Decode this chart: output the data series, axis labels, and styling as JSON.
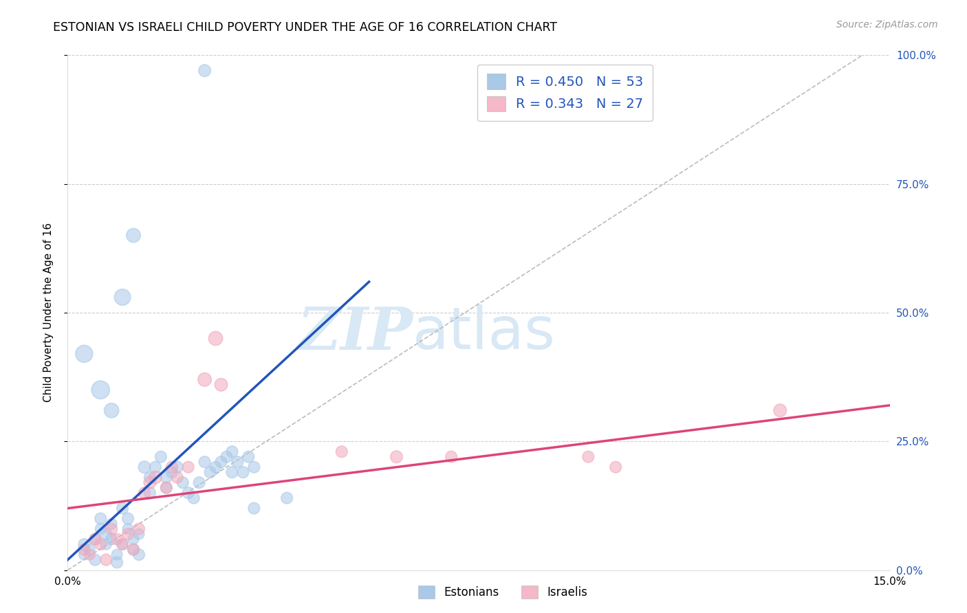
{
  "title": "ESTONIAN VS ISRAELI CHILD POVERTY UNDER THE AGE OF 16 CORRELATION CHART",
  "source": "Source: ZipAtlas.com",
  "ylabel": "Child Poverty Under the Age of 16",
  "xlim": [
    0,
    0.15
  ],
  "ylim": [
    0,
    1.0
  ],
  "xtick_positions": [
    0.0,
    0.05,
    0.1,
    0.15
  ],
  "xtick_labels": [
    "0.0%",
    "",
    "",
    "15.0%"
  ],
  "ytick_positions": [
    0.0,
    0.25,
    0.5,
    0.75,
    1.0
  ],
  "ytick_labels_right": [
    "0.0%",
    "25.0%",
    "50.0%",
    "75.0%",
    "100.0%"
  ],
  "background": "#ffffff",
  "grid_color": "#cccccc",
  "watermark_zip": "ZIP",
  "watermark_atlas": "atlas",
  "watermark_color": "#d8e8f5",
  "blue_scatter_color": "#a8c8e8",
  "pink_scatter_color": "#f0a8bc",
  "blue_line_color": "#2255bb",
  "pink_line_color": "#dd4477",
  "dashed_line_color": "#bbbbbb",
  "legend_label1": "R = 0.450   N = 53",
  "legend_label2": "R = 0.343   N = 27",
  "legend_text_color": "#2255bb",
  "blue_line_x": [
    0.0,
    0.055
  ],
  "blue_line_y": [
    0.02,
    0.56
  ],
  "pink_line_x": [
    0.0,
    0.15
  ],
  "pink_line_y": [
    0.12,
    0.32
  ],
  "dash_line_x": [
    0.0,
    0.145
  ],
  "dash_line_y": [
    0.0,
    1.0
  ],
  "estonians_x": [
    0.003,
    0.003,
    0.004,
    0.005,
    0.005,
    0.006,
    0.006,
    0.007,
    0.007,
    0.008,
    0.008,
    0.009,
    0.009,
    0.01,
    0.01,
    0.011,
    0.011,
    0.012,
    0.012,
    0.013,
    0.013,
    0.014,
    0.015,
    0.015,
    0.016,
    0.017,
    0.018,
    0.018,
    0.019,
    0.02,
    0.021,
    0.022,
    0.023,
    0.024,
    0.025,
    0.026,
    0.027,
    0.028,
    0.029,
    0.03,
    0.03,
    0.031,
    0.032,
    0.033,
    0.034,
    0.003,
    0.006,
    0.008,
    0.01,
    0.012,
    0.025,
    0.04,
    0.034
  ],
  "estonians_y": [
    0.05,
    0.03,
    0.04,
    0.06,
    0.02,
    0.08,
    0.1,
    0.05,
    0.07,
    0.09,
    0.06,
    0.03,
    0.015,
    0.05,
    0.12,
    0.08,
    0.1,
    0.06,
    0.04,
    0.07,
    0.03,
    0.2,
    0.18,
    0.15,
    0.2,
    0.22,
    0.18,
    0.16,
    0.19,
    0.2,
    0.17,
    0.15,
    0.14,
    0.17,
    0.21,
    0.19,
    0.2,
    0.21,
    0.22,
    0.19,
    0.23,
    0.21,
    0.19,
    0.22,
    0.2,
    0.42,
    0.35,
    0.31,
    0.53,
    0.65,
    0.97,
    0.14,
    0.12
  ],
  "estonians_sizes": [
    80,
    70,
    70,
    80,
    80,
    70,
    80,
    70,
    80,
    70,
    80,
    70,
    80,
    70,
    80,
    70,
    80,
    70,
    80,
    70,
    80,
    90,
    80,
    80,
    80,
    80,
    80,
    80,
    80,
    80,
    80,
    80,
    80,
    80,
    80,
    80,
    80,
    80,
    80,
    80,
    80,
    80,
    80,
    80,
    80,
    180,
    200,
    130,
    160,
    120,
    90,
    80,
    80
  ],
  "israelis_x": [
    0.003,
    0.004,
    0.005,
    0.006,
    0.007,
    0.008,
    0.009,
    0.01,
    0.011,
    0.012,
    0.013,
    0.014,
    0.015,
    0.016,
    0.018,
    0.019,
    0.02,
    0.022,
    0.025,
    0.027,
    0.028,
    0.05,
    0.06,
    0.07,
    0.095,
    0.1,
    0.13
  ],
  "israelis_y": [
    0.04,
    0.03,
    0.06,
    0.05,
    0.02,
    0.08,
    0.06,
    0.05,
    0.07,
    0.04,
    0.08,
    0.15,
    0.17,
    0.18,
    0.16,
    0.2,
    0.18,
    0.2,
    0.37,
    0.45,
    0.36,
    0.23,
    0.22,
    0.22,
    0.22,
    0.2,
    0.31
  ],
  "israelis_sizes": [
    80,
    70,
    80,
    80,
    80,
    80,
    80,
    80,
    80,
    80,
    80,
    80,
    90,
    100,
    80,
    80,
    80,
    80,
    110,
    120,
    100,
    80,
    90,
    80,
    80,
    80,
    100
  ]
}
